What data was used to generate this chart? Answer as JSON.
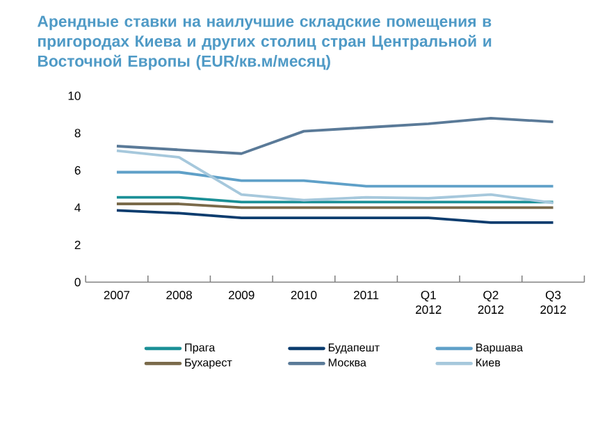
{
  "chart_data": {
    "type": "line",
    "title": "Арендные ставки на наилучшие складские помещения в пригородах Киева и других столиц стран Центральной и Восточной Европы (EUR/кв.м/месяц)",
    "categories": [
      "2007",
      "2008",
      "2009",
      "2010",
      "2011",
      "Q1 2012",
      "Q2 2012",
      "Q3 2012"
    ],
    "series": [
      {
        "name": "Прага",
        "color": "#1a8f96",
        "values": [
          4.55,
          4.55,
          4.3,
          4.3,
          4.3,
          4.3,
          4.3,
          4.3
        ]
      },
      {
        "name": "Будапешт",
        "color": "#0b3c6e",
        "values": [
          3.85,
          3.7,
          3.45,
          3.45,
          3.45,
          3.45,
          3.2,
          3.2
        ]
      },
      {
        "name": "Варшава",
        "color": "#5fa0c8",
        "values": [
          5.9,
          5.9,
          5.45,
          5.45,
          5.15,
          5.15,
          5.15,
          5.15
        ]
      },
      {
        "name": "Бухарест",
        "color": "#7a6a4a",
        "values": [
          4.2,
          4.2,
          4.0,
          4.0,
          4.0,
          4.0,
          4.0,
          4.0
        ]
      },
      {
        "name": "Москва",
        "color": "#5a7a98",
        "values": [
          7.3,
          7.1,
          6.9,
          8.1,
          8.3,
          8.5,
          8.8,
          8.6
        ]
      },
      {
        "name": "Киев",
        "color": "#a6c8dc",
        "values": [
          7.05,
          6.7,
          4.7,
          4.4,
          4.55,
          4.5,
          4.7,
          4.25
        ]
      }
    ],
    "ylim": [
      0,
      10
    ],
    "yticks": [
      0,
      2,
      4,
      6,
      8,
      10
    ],
    "legend": "bottom"
  }
}
